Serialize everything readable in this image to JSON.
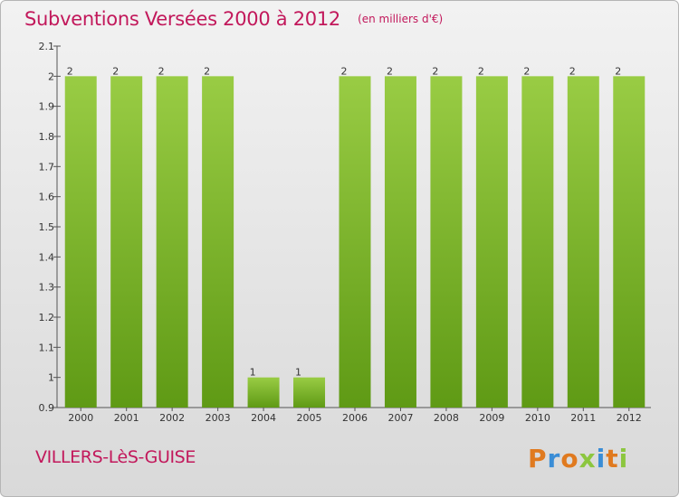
{
  "header": {
    "title": "Subventions Versées 2000 à 2012",
    "unit": "(en milliers d'€)"
  },
  "footer": {
    "commune": "VILLERS-LèS-GUISE",
    "logo": "Proxiti"
  },
  "colors": {
    "title": "#c2185b",
    "bar_top": "#99cc44",
    "bar_bottom": "#5f9a15",
    "logo_letters": [
      "#e07a1f",
      "#3a8dd6",
      "#e07a1f",
      "#8cc63f",
      "#3a8dd6",
      "#e07a1f",
      "#8cc63f"
    ]
  },
  "chart_data": {
    "type": "bar",
    "title": "Subventions Versées 2000 à 2012",
    "subtitle": "(en milliers d'€)",
    "xlabel": "",
    "ylabel": "",
    "categories": [
      "2000",
      "2001",
      "2002",
      "2003",
      "2004",
      "2005",
      "2006",
      "2007",
      "2008",
      "2009",
      "2010",
      "2011",
      "2012"
    ],
    "values": [
      2,
      2,
      2,
      2,
      1,
      1,
      2,
      2,
      2,
      2,
      2,
      2,
      2
    ],
    "data_labels": [
      "2",
      "2",
      "2",
      "2",
      "1",
      "1",
      "2",
      "2",
      "2",
      "2",
      "2",
      "2",
      "2"
    ],
    "ylim": [
      0.9,
      2.1
    ],
    "yticks": [
      0.9,
      1,
      1.1,
      1.2,
      1.3,
      1.4,
      1.5,
      1.6,
      1.7,
      1.8,
      1.9,
      2,
      2.1
    ],
    "ytick_labels": [
      "0.9",
      "1",
      "1.1",
      "1.2",
      "1.3",
      "1.4",
      "1.5",
      "1.6",
      "1.7",
      "1.8",
      "1.9",
      "2",
      "2.1"
    ],
    "grid": false,
    "legend": "none"
  }
}
